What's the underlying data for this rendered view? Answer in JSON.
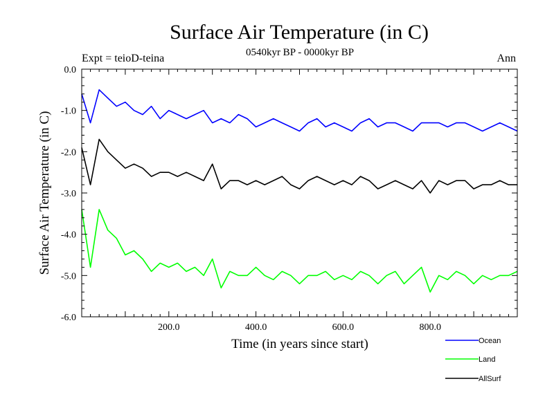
{
  "chart_data": {
    "type": "line",
    "title": "Surface Air Temperature (in C)",
    "subtitle": "0540kyr BP - 0000kyr BP",
    "experiment": "Expt = teioD-teina",
    "period": "Ann",
    "xlabel": "Time (in years since start)",
    "ylabel": "Surface Air Temperature (in C)",
    "xlim": [
      0,
      1000
    ],
    "ylim": [
      -6.0,
      0.0
    ],
    "x_ticks": [
      200,
      400,
      600,
      800
    ],
    "x_tick_labels": [
      "200.0",
      "400.0",
      "600.0",
      "800.0"
    ],
    "y_ticks": [
      0,
      -1,
      -2,
      -3,
      -4,
      -5,
      -6
    ],
    "y_tick_labels": [
      "0.0",
      "-1.0",
      "-2.0",
      "-3.0",
      "-4.0",
      "-5.0",
      "-6.0"
    ],
    "grid": false,
    "legend_position": "bottom-right, below plot",
    "series_x_start": 0,
    "series_x_step": 20,
    "series": [
      {
        "name": "Ocean",
        "color": "#0000ff",
        "values": [
          -0.6,
          -1.3,
          -0.5,
          -0.7,
          -0.9,
          -0.8,
          -1.0,
          -1.1,
          -0.9,
          -1.2,
          -1.0,
          -1.1,
          -1.2,
          -1.1,
          -1.0,
          -1.3,
          -1.2,
          -1.3,
          -1.1,
          -1.2,
          -1.4,
          -1.3,
          -1.2,
          -1.3,
          -1.4,
          -1.5,
          -1.3,
          -1.2,
          -1.4,
          -1.3,
          -1.4,
          -1.5,
          -1.3,
          -1.2,
          -1.4,
          -1.3,
          -1.3,
          -1.4,
          -1.5,
          -1.3,
          -1.3,
          -1.3,
          -1.4,
          -1.3,
          -1.3,
          -1.4,
          -1.5,
          -1.4,
          -1.3,
          -1.4,
          -1.5
        ]
      },
      {
        "name": "Land",
        "color": "#00ff00",
        "values": [
          -3.4,
          -4.8,
          -3.4,
          -3.9,
          -4.1,
          -4.5,
          -4.4,
          -4.6,
          -4.9,
          -4.7,
          -4.8,
          -4.7,
          -4.9,
          -4.8,
          -5.0,
          -4.6,
          -5.3,
          -4.9,
          -5.0,
          -5.0,
          -4.8,
          -5.0,
          -5.1,
          -4.9,
          -5.0,
          -5.2,
          -5.0,
          -5.0,
          -4.9,
          -5.1,
          -5.0,
          -5.1,
          -4.9,
          -5.0,
          -5.2,
          -5.0,
          -4.9,
          -5.2,
          -5.0,
          -4.8,
          -5.4,
          -5.0,
          -5.1,
          -4.9,
          -5.0,
          -5.2,
          -5.0,
          -5.1,
          -5.0,
          -5.0,
          -4.9
        ]
      },
      {
        "name": "AllSurf",
        "color": "#000000",
        "values": [
          -1.9,
          -2.8,
          -1.7,
          -2.0,
          -2.2,
          -2.4,
          -2.3,
          -2.4,
          -2.6,
          -2.5,
          -2.5,
          -2.6,
          -2.5,
          -2.6,
          -2.7,
          -2.3,
          -2.9,
          -2.7,
          -2.7,
          -2.8,
          -2.7,
          -2.8,
          -2.7,
          -2.6,
          -2.8,
          -2.9,
          -2.7,
          -2.6,
          -2.7,
          -2.8,
          -2.7,
          -2.8,
          -2.6,
          -2.7,
          -2.9,
          -2.8,
          -2.7,
          -2.8,
          -2.9,
          -2.7,
          -3.0,
          -2.7,
          -2.8,
          -2.7,
          -2.7,
          -2.9,
          -2.8,
          -2.8,
          -2.7,
          -2.8,
          -2.8
        ]
      }
    ]
  }
}
